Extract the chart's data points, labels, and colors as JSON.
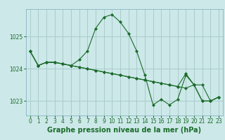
{
  "bg_color": "#cce8e8",
  "grid_color": "#aacccc",
  "line_color": "#1a6b2a",
  "marker_color": "#1a6b2a",
  "xlabel": "Graphe pression niveau de la mer (hPa)",
  "ylim": [
    1022.55,
    1025.85
  ],
  "xlim": [
    -0.5,
    23.5
  ],
  "yticks": [
    1023,
    1024,
    1025
  ],
  "xticks": [
    0,
    1,
    2,
    3,
    4,
    5,
    6,
    7,
    8,
    9,
    10,
    11,
    12,
    13,
    14,
    15,
    16,
    17,
    18,
    19,
    20,
    21,
    22,
    23
  ],
  "series": [
    [
      1024.55,
      1024.1,
      1024.2,
      1024.2,
      1024.15,
      1024.1,
      1024.28,
      1024.55,
      1025.25,
      1025.6,
      1025.68,
      1025.45,
      1025.1,
      1024.55,
      1023.8,
      1022.88,
      1023.05,
      1022.88,
      1023.05,
      1023.8,
      1023.5,
      1023.5,
      1023.0,
      1023.12
    ],
    [
      1024.55,
      1024.1,
      1024.2,
      1024.2,
      1024.15,
      1024.1,
      1024.05,
      1024.0,
      1023.95,
      1023.9,
      1023.85,
      1023.8,
      1023.75,
      1023.7,
      1023.65,
      1023.6,
      1023.55,
      1023.5,
      1023.45,
      1023.85,
      1023.5,
      1023.0,
      1023.0,
      1023.12
    ],
    [
      1024.55,
      1024.1,
      1024.2,
      1024.2,
      1024.15,
      1024.1,
      1024.05,
      1024.0,
      1023.95,
      1023.9,
      1023.85,
      1023.8,
      1023.75,
      1023.7,
      1023.65,
      1023.6,
      1023.55,
      1023.5,
      1023.45,
      1023.4,
      1023.5,
      1023.0,
      1023.0,
      1023.12
    ]
  ],
  "title_fontsize": 7,
  "tick_fontsize": 5.5,
  "linewidth": 0.8,
  "markersize": 2.2
}
